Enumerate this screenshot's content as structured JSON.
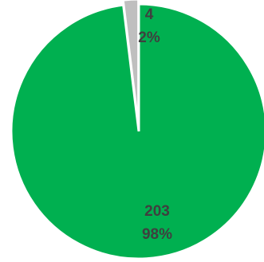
{
  "chart_data": {
    "type": "pie",
    "slices": [
      {
        "value": 4,
        "label": "4",
        "percent_label": "2%",
        "color": "#bfbfbf"
      },
      {
        "value": 203,
        "label": "203",
        "percent_label": "98%",
        "color": "#00b050"
      }
    ],
    "start_angle_deg": -90,
    "direction": "counterclockwise",
    "exploded_slice_index": 0,
    "legend": "none"
  }
}
